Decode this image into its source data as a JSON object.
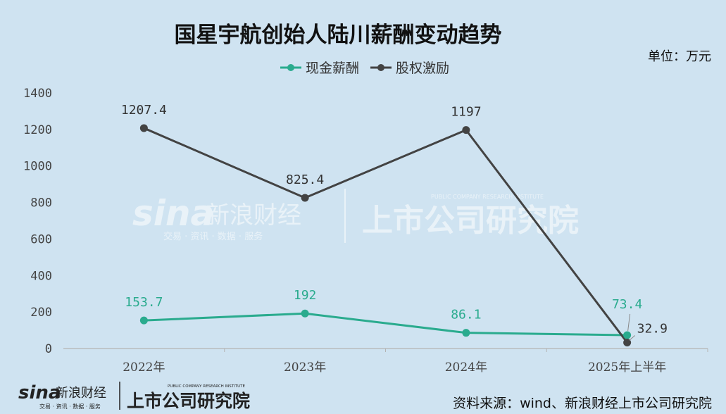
{
  "watermark": {
    "brand_sina": "sina",
    "brand_name": "新浪财经",
    "brand_tagline": "交易 · 资讯 · 数据 · 服务",
    "institute": "上市公司研究院",
    "institute_en": "PUBLIC COMPANY RESEARCH INSTITUTE"
  },
  "source": "资料来源：wind、新浪财经上市公司研究院",
  "chart_data": {
    "type": "line",
    "title": "国星宇航创始人陆川薪酬变动趋势",
    "unit": "单位：万元",
    "categories": [
      "2022年",
      "2023年",
      "2024年",
      "2025年上半年"
    ],
    "ylim": [
      0,
      1400
    ],
    "yticks": [
      0,
      200,
      400,
      600,
      800,
      1000,
      1200,
      1400
    ],
    "grid": false,
    "legend_position": "top",
    "series": [
      {
        "name": "现金薪酬",
        "color": "#2aab8e",
        "values": [
          153.7,
          192,
          86.1,
          73.4
        ],
        "labels": [
          "153.7",
          "192",
          "86.1",
          "73.4"
        ]
      },
      {
        "name": "股权激励",
        "color": "#434343",
        "values": [
          1207.4,
          825.4,
          1197,
          32.9
        ],
        "labels": [
          "1207.4",
          "825.4",
          "1197",
          "32.9"
        ]
      }
    ]
  }
}
